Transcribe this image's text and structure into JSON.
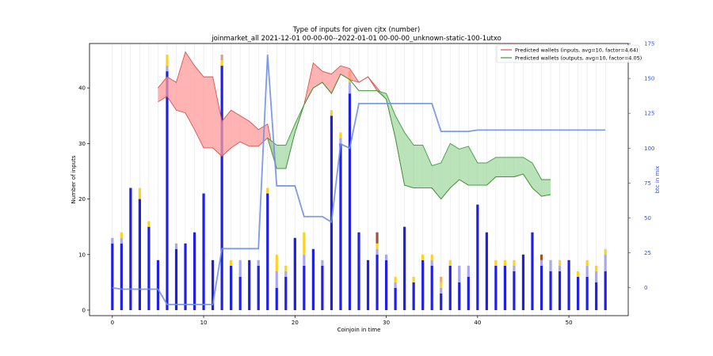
{
  "chart_data": {
    "type": "bar",
    "title_line1": "Type of inputs for given cjtx (number)",
    "title_line2": "joinmarket_all 2021-12-01 00-00-00--2022-01-01 00-00-00_unknown-static-100-1utxo",
    "xlabel": "Coinjoin in time",
    "ylabel": "Number of inputs",
    "ylabel_right": "btc in mix",
    "xlim": [
      -2.5,
      56.5
    ],
    "ylim": [
      -1,
      48
    ],
    "ylim_right": [
      -20,
      175
    ],
    "xticks": [
      0,
      10,
      20,
      30,
      40,
      50
    ],
    "yticks": [
      0,
      10,
      20,
      30,
      40
    ],
    "yticks_right": [
      0,
      25,
      50,
      75,
      100,
      125,
      150,
      175
    ],
    "colors": {
      "fresh": "#1f1fe6",
      "remix": "#a8a8ee",
      "yellow": "#ffd21f",
      "orange": "#ffaa44",
      "brown": "#a0522d",
      "pink": "#e69999",
      "btc_line": "#7090e6",
      "inputs_band": "#ff9999",
      "inputs_line": "#d9534f",
      "outputs_band": "#a3d9a3",
      "outputs_line": "#3a9a3a"
    },
    "bars": [
      [
        0,
        12,
        1,
        0,
        0,
        0,
        0
      ],
      [
        1,
        12,
        1,
        1,
        0,
        0,
        0
      ],
      [
        2,
        22,
        0,
        0,
        0,
        0,
        0
      ],
      [
        3,
        20,
        0,
        2,
        0,
        0,
        0
      ],
      [
        4,
        15,
        0,
        1,
        0,
        0,
        0
      ],
      [
        5,
        9,
        0,
        0,
        0,
        0,
        0
      ],
      [
        6,
        43,
        1,
        2,
        0,
        0,
        0
      ],
      [
        7,
        11,
        1,
        0,
        0,
        0,
        0
      ],
      [
        8,
        12,
        0,
        0,
        0,
        0,
        0
      ],
      [
        9,
        14,
        0,
        0,
        0,
        0,
        0
      ],
      [
        10,
        21,
        0,
        0,
        0,
        0,
        0
      ],
      [
        11,
        9,
        0,
        0,
        0,
        0,
        0
      ],
      [
        12,
        44,
        0,
        1,
        0,
        0,
        1
      ],
      [
        13,
        8,
        0,
        1,
        0,
        0,
        0
      ],
      [
        14,
        6,
        3,
        0,
        0,
        0,
        0
      ],
      [
        15,
        9,
        0,
        0,
        0,
        0,
        0
      ],
      [
        16,
        8,
        1,
        0,
        0,
        0,
        0
      ],
      [
        17,
        21,
        0,
        1,
        0,
        0,
        0
      ],
      [
        18,
        4,
        3,
        3,
        0,
        0,
        0
      ],
      [
        19,
        6,
        1,
        1,
        0,
        0,
        0
      ],
      [
        20,
        13,
        0,
        0,
        0,
        0,
        0
      ],
      [
        21,
        8,
        2,
        4,
        0,
        0,
        0
      ],
      [
        22,
        11,
        0,
        0,
        0,
        0,
        0
      ],
      [
        23,
        8,
        1,
        0,
        0,
        0,
        0
      ],
      [
        24,
        35,
        0,
        1,
        0,
        0,
        0
      ],
      [
        25,
        30,
        1,
        1,
        0,
        0,
        0
      ],
      [
        26,
        39,
        2,
        1,
        1,
        0,
        0
      ],
      [
        27,
        14,
        0,
        0,
        0,
        0,
        0
      ],
      [
        28,
        9,
        0,
        0,
        0,
        0,
        0
      ],
      [
        29,
        10,
        1,
        1,
        0,
        2,
        0
      ],
      [
        30,
        9,
        1,
        0,
        0,
        0,
        0
      ],
      [
        31,
        4,
        1,
        1,
        0,
        0,
        0
      ],
      [
        32,
        15,
        0,
        0,
        0,
        0,
        0
      ],
      [
        33,
        5,
        0,
        1,
        0,
        0,
        0
      ],
      [
        34,
        9,
        0,
        1,
        0,
        0,
        0
      ],
      [
        35,
        8,
        1,
        1,
        0,
        0,
        0
      ],
      [
        36,
        3,
        1,
        1,
        1,
        0,
        0
      ],
      [
        37,
        8,
        0,
        1,
        0,
        0,
        0
      ],
      [
        38,
        5,
        3,
        0,
        0,
        0,
        0
      ],
      [
        39,
        6,
        2,
        0,
        0,
        0,
        0
      ],
      [
        40,
        19,
        0,
        0,
        0,
        0,
        0
      ],
      [
        41,
        14,
        0,
        0,
        0,
        0,
        0
      ],
      [
        42,
        8,
        0,
        1,
        0,
        0,
        0
      ],
      [
        43,
        8,
        0,
        1,
        0,
        0,
        0
      ],
      [
        44,
        7,
        1,
        1,
        0,
        0,
        0
      ],
      [
        45,
        10,
        0,
        0,
        0,
        0,
        0
      ],
      [
        46,
        14,
        0,
        0,
        0,
        0,
        0
      ],
      [
        47,
        8,
        1,
        0,
        0,
        1,
        0
      ],
      [
        48,
        7,
        2,
        0,
        0,
        0,
        0
      ],
      [
        49,
        7,
        1,
        1,
        0,
        0,
        0
      ],
      [
        50,
        9,
        0,
        0,
        0,
        0,
        0
      ],
      [
        51,
        6,
        0,
        1,
        0,
        0,
        0
      ],
      [
        52,
        6,
        2,
        1,
        0,
        0,
        0
      ],
      [
        53,
        5,
        2,
        1,
        0,
        0,
        0
      ],
      [
        54,
        7,
        3,
        1,
        0,
        0,
        0
      ]
    ],
    "btc_in_mix": [
      [
        0,
        0
      ],
      [
        1,
        -1
      ],
      [
        2,
        -1
      ],
      [
        3,
        -1
      ],
      [
        4,
        -1
      ],
      [
        5,
        -1
      ],
      [
        6,
        -12
      ],
      [
        7,
        -12
      ],
      [
        8,
        -12
      ],
      [
        9,
        -12
      ],
      [
        10,
        -12
      ],
      [
        11,
        -12
      ],
      [
        12,
        28
      ],
      [
        13,
        28
      ],
      [
        14,
        28
      ],
      [
        15,
        28
      ],
      [
        16,
        28
      ],
      [
        17,
        167
      ],
      [
        18,
        73
      ],
      [
        19,
        73
      ],
      [
        20,
        73
      ],
      [
        21,
        51
      ],
      [
        22,
        51
      ],
      [
        23,
        51
      ],
      [
        24,
        47
      ],
      [
        25,
        103
      ],
      [
        26,
        100
      ],
      [
        27,
        132
      ],
      [
        28,
        132
      ],
      [
        29,
        132
      ],
      [
        30,
        132
      ],
      [
        31,
        132
      ],
      [
        32,
        132
      ],
      [
        33,
        132
      ],
      [
        34,
        132
      ],
      [
        35,
        132
      ],
      [
        36,
        112
      ],
      [
        37,
        112
      ],
      [
        38,
        112
      ],
      [
        39,
        112
      ],
      [
        40,
        113
      ],
      [
        41,
        113
      ],
      [
        42,
        113
      ],
      [
        43,
        113
      ],
      [
        44,
        113
      ],
      [
        45,
        113
      ],
      [
        46,
        113
      ],
      [
        47,
        113
      ],
      [
        48,
        113
      ],
      [
        49,
        113
      ],
      [
        50,
        113
      ],
      [
        51,
        113
      ],
      [
        52,
        113
      ],
      [
        53,
        113
      ],
      [
        54,
        113
      ]
    ],
    "inputs_band": {
      "x": [
        5,
        6,
        7,
        8,
        9,
        10,
        11,
        12,
        13,
        14,
        15,
        16,
        17,
        18,
        19,
        20,
        21,
        22,
        23,
        24,
        25,
        26,
        27,
        28,
        29,
        30,
        31,
        32,
        33,
        34,
        35,
        36,
        37,
        38,
        39,
        40,
        41,
        42,
        43,
        44,
        45,
        46,
        47,
        48
      ],
      "upper": [
        40,
        42,
        41,
        46.5,
        44,
        42,
        42,
        34,
        36,
        35,
        34,
        32.5,
        33.5,
        25.5,
        25.5,
        32,
        37,
        44.5,
        43,
        42.5,
        44,
        43.5,
        41,
        42,
        40,
        38,
        31,
        22.5,
        22,
        22,
        22,
        20,
        22,
        23.5,
        22.5,
        22.5,
        22.5,
        24,
        24,
        24,
        24.5,
        22,
        20.5,
        20.8
      ],
      "lower": [
        37.5,
        38.5,
        36,
        35.5,
        32.5,
        29.2,
        29.2,
        27.7,
        29.2,
        30.3,
        29.5,
        29.5,
        31,
        25.5,
        25.5,
        32,
        37,
        40,
        41,
        39,
        42.5,
        41.5,
        41,
        42,
        39.5,
        38,
        31,
        22.5,
        22,
        22,
        22,
        20,
        22,
        23.5,
        22.5,
        22.5,
        22.5,
        24,
        24,
        24,
        24.5,
        22,
        20.5,
        20.8
      ]
    },
    "outputs_band": {
      "x": [
        17,
        18,
        19,
        20,
        21,
        22,
        23,
        24,
        25,
        26,
        27,
        28,
        29,
        30,
        31,
        32,
        33,
        34,
        35,
        36,
        37,
        38,
        39,
        40,
        41,
        42,
        43,
        44,
        45,
        46,
        47,
        48
      ],
      "upper": [
        31,
        29.7,
        29.7,
        33.5,
        37,
        40,
        41,
        39,
        42.5,
        41.5,
        39.5,
        39.5,
        39.5,
        39,
        35,
        32,
        29.7,
        29.7,
        26,
        26.5,
        30,
        29,
        29.5,
        26.5,
        26.5,
        27.5,
        27.5,
        27.5,
        27.5,
        26.5,
        23.5,
        23.5
      ],
      "lower": [
        31,
        25.5,
        25.5,
        32,
        37,
        40,
        41,
        39,
        42.5,
        41.5,
        39.5,
        39.5,
        39.5,
        38,
        31,
        22.5,
        22,
        22,
        22,
        20,
        22,
        23.5,
        22.5,
        22.5,
        22.5,
        24,
        24,
        24,
        24.5,
        22,
        20.5,
        20.8
      ]
    },
    "legend": [
      {
        "label": "Predicted wallets (inputs, avg=10, factor=4.64)",
        "color": "#d9534f"
      },
      {
        "label": "Predicted wallets (outputs, avg=10, factor=4.05)",
        "color": "#3a9a3a"
      }
    ],
    "legend_position": "top-right"
  }
}
